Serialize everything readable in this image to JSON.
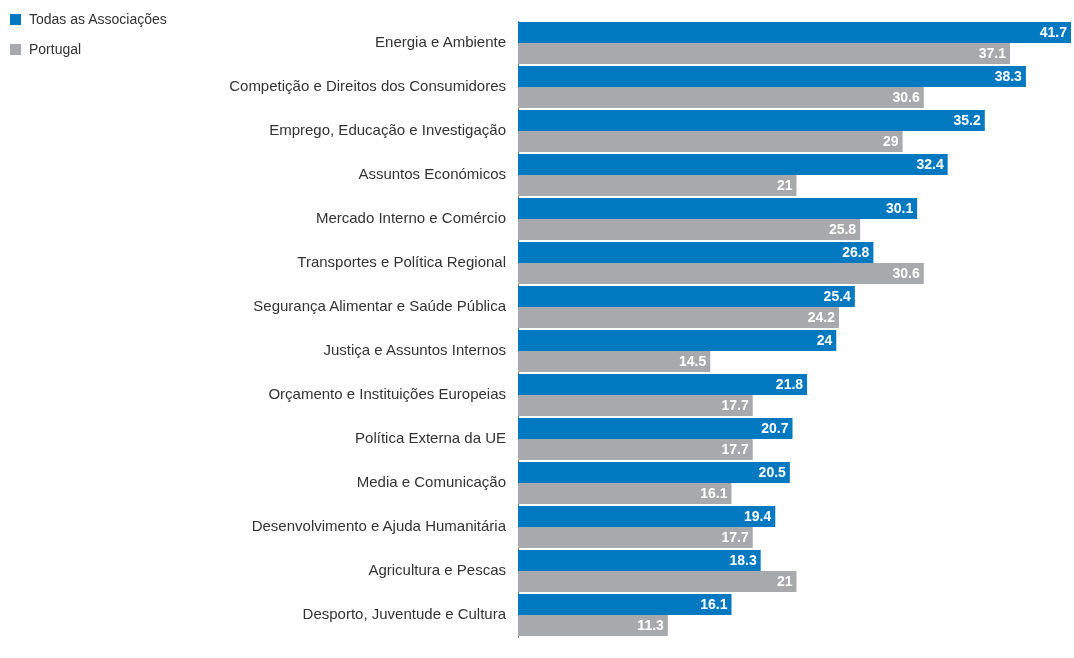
{
  "chart_data": {
    "type": "bar",
    "orientation": "horizontal",
    "data_labels": true,
    "legend": "top left",
    "categories": [
      "Energia e Ambiente",
      "Competição e Direitos dos Consumidores",
      "Emprego, Educação e Investigação",
      "Assuntos Económicos",
      "Mercado Interno e Comércio",
      "Transportes e Política Regional",
      "Segurança Alimentar e Saúde Pública",
      "Justiça e Assuntos Internos",
      "Orçamento e Instituições Europeias",
      "Política Externa da UE",
      "Media e Comunicação",
      "Desenvolvimento e Ajuda Humanitária",
      "Agricultura e Pescas",
      "Desporto, Juventude e Cultura"
    ],
    "series": [
      {
        "name": "Todas as Associações",
        "color": "#0079c1",
        "values": [
          41.7,
          38.3,
          35.2,
          32.4,
          30.1,
          26.8,
          25.4,
          24,
          21.8,
          20.7,
          20.5,
          19.4,
          18.3,
          16.1
        ]
      },
      {
        "name": "Portugal",
        "color": "#a7a9ac",
        "values": [
          37.1,
          30.6,
          29,
          21,
          25.8,
          30.6,
          24.2,
          14.5,
          17.7,
          17.7,
          16.1,
          17.7,
          21,
          11.3
        ]
      }
    ]
  }
}
